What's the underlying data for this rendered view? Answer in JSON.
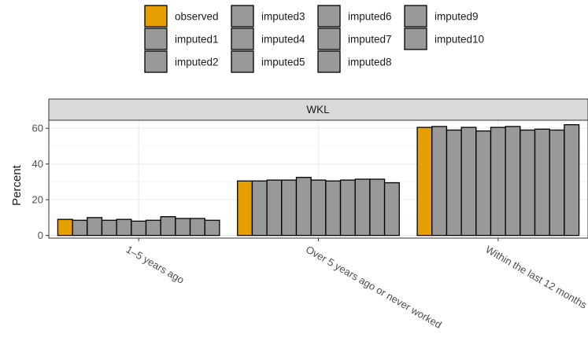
{
  "chart_data": {
    "type": "bar",
    "facet": "WKL",
    "ylabel": "Percent",
    "xlabel": "",
    "ylim": [
      -1.5,
      64.5
    ],
    "yticks": [
      0,
      20,
      40,
      60
    ],
    "grid": true,
    "legend_position": "top",
    "categories": [
      "1–5 years ago",
      "Over 5 years ago or never worked",
      "Within the last 12 months"
    ],
    "series": [
      {
        "name": "observed",
        "color": "#E69F00",
        "values": [
          9.0,
          30.5,
          60.5
        ]
      },
      {
        "name": "imputed1",
        "color": "#999999",
        "values": [
          8.5,
          30.5,
          61.0
        ]
      },
      {
        "name": "imputed2",
        "color": "#999999",
        "values": [
          10.0,
          31.0,
          59.0
        ]
      },
      {
        "name": "imputed3",
        "color": "#999999",
        "values": [
          8.5,
          31.0,
          60.5
        ]
      },
      {
        "name": "imputed4",
        "color": "#999999",
        "values": [
          9.0,
          32.5,
          58.5
        ]
      },
      {
        "name": "imputed5",
        "color": "#999999",
        "values": [
          8.0,
          31.0,
          60.5
        ]
      },
      {
        "name": "imputed6",
        "color": "#999999",
        "values": [
          8.5,
          30.5,
          61.0
        ]
      },
      {
        "name": "imputed7",
        "color": "#999999",
        "values": [
          10.5,
          31.0,
          59.0
        ]
      },
      {
        "name": "imputed8",
        "color": "#999999",
        "values": [
          9.5,
          31.5,
          59.5
        ]
      },
      {
        "name": "imputed9",
        "color": "#999999",
        "values": [
          9.5,
          31.5,
          59.0
        ]
      },
      {
        "name": "imputed10",
        "color": "#999999",
        "values": [
          8.5,
          29.5,
          62.0
        ]
      }
    ]
  }
}
